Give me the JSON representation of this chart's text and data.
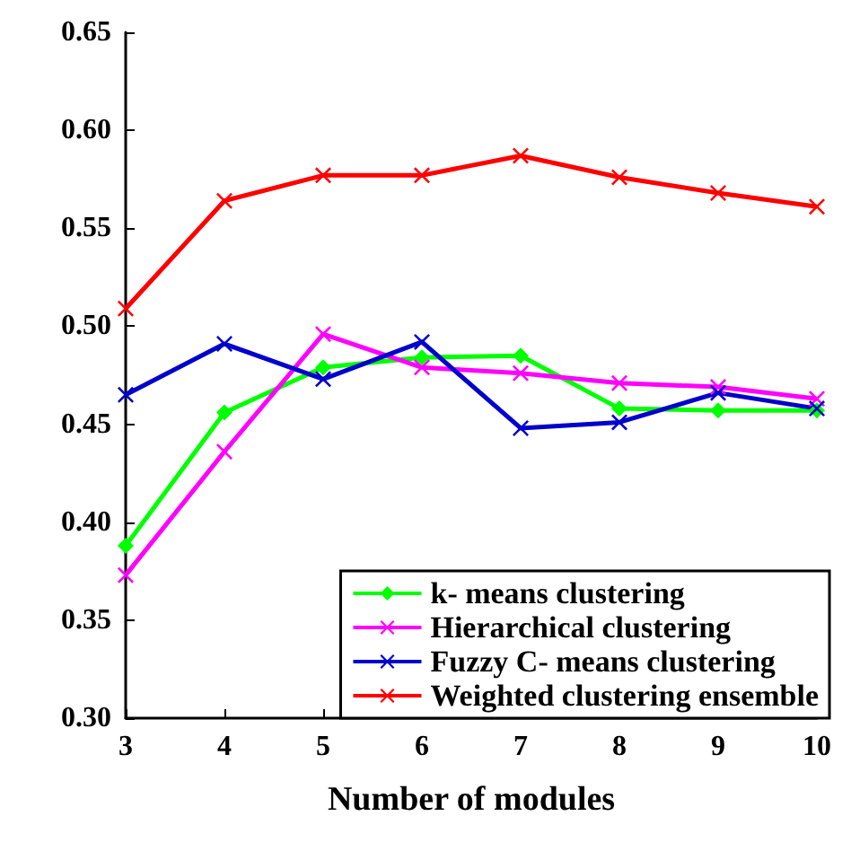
{
  "chart_data": {
    "type": "line",
    "xlabel": "Number of modules",
    "x": [
      3,
      4,
      5,
      6,
      7,
      8,
      9,
      10
    ],
    "xlim": [
      3,
      10
    ],
    "xticks": [
      3,
      4,
      5,
      6,
      7,
      8,
      9,
      10
    ],
    "ylim": [
      0.3,
      0.65
    ],
    "yticks": [
      {
        "value": 0.3,
        "label": "0.30"
      },
      0.35,
      {
        "value": 0.4,
        "label": "0.40"
      },
      0.45,
      {
        "value": 0.5,
        "label": "0.50"
      },
      0.55,
      {
        "value": 0.6,
        "label": "0.60"
      },
      0.65
    ],
    "grid": false,
    "legend": "bottom right",
    "line_style": "solid",
    "series": [
      {
        "name": "k- means clustering",
        "color": "#00ff00",
        "marker": "diamond",
        "values": [
          0.388,
          0.456,
          0.479,
          0.484,
          0.485,
          0.458,
          0.457,
          0.457
        ]
      },
      {
        "name": "Hierarchical clustering",
        "color": "#ff00ff",
        "marker": "cross",
        "values": [
          0.373,
          0.436,
          0.496,
          0.479,
          0.476,
          0.471,
          0.469,
          0.463
        ]
      },
      {
        "name": "Fuzzy C- means clustering",
        "color": "#0000cc",
        "marker": "cross",
        "values": [
          0.465,
          0.491,
          0.473,
          0.492,
          0.448,
          0.451,
          0.466,
          0.458
        ]
      },
      {
        "name": "Weighted clustering ensemble",
        "color": "#ff0000",
        "marker": "cross",
        "values": [
          0.509,
          0.564,
          0.577,
          0.577,
          0.587,
          0.576,
          0.568,
          0.561
        ]
      }
    ]
  }
}
